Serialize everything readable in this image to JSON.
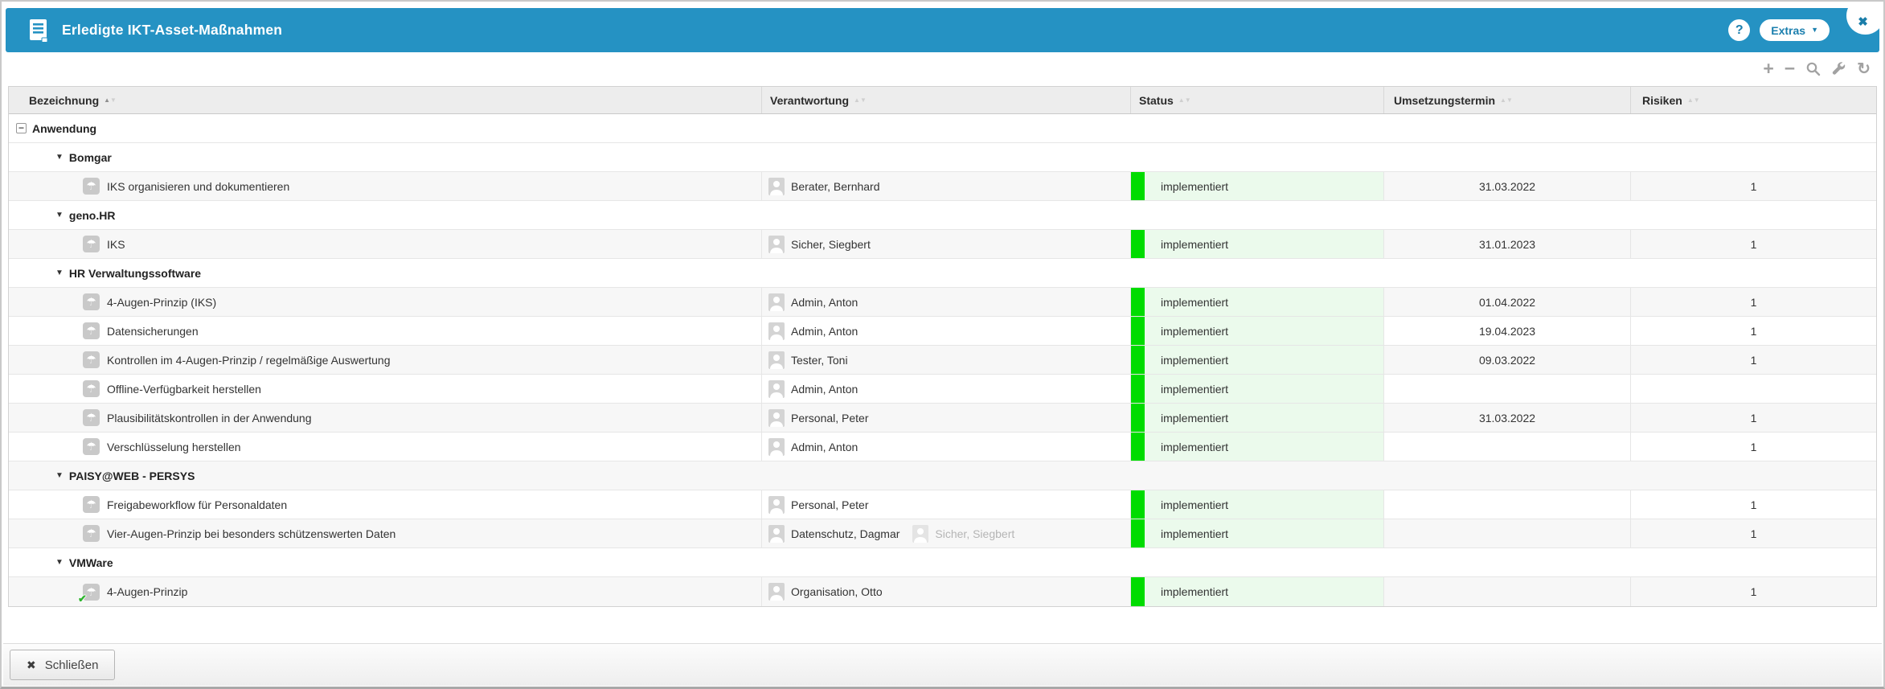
{
  "window": {
    "title": "Erledigte IKT-Asset-Maßnahmen",
    "help_label": "?",
    "extras_label": "Extras",
    "close_glyph": "✖"
  },
  "toolbar": {
    "icons": [
      {
        "name": "add",
        "glyph": "+"
      },
      {
        "name": "remove",
        "glyph": "−"
      },
      {
        "name": "search"
      },
      {
        "name": "settings-wrench"
      },
      {
        "name": "refresh",
        "glyph": "↻"
      }
    ]
  },
  "table": {
    "columns": [
      {
        "label": "Bezeichnung",
        "sort": "asc"
      },
      {
        "label": "Verantwortung",
        "sort": "none"
      },
      {
        "label": "Status",
        "sort": "none"
      },
      {
        "label": "Umsetzungstermin",
        "sort": "none"
      },
      {
        "label": "Risiken",
        "sort": "none"
      }
    ],
    "rows": [
      {
        "type": "group",
        "level": 0,
        "label": "Anwendung",
        "shaded": false
      },
      {
        "type": "group",
        "level": 1,
        "label": "Bomgar",
        "shaded": false
      },
      {
        "type": "measure",
        "label": "IKS organisieren und dokumentieren",
        "responsible": [
          {
            "name": "Berater, Bernhard",
            "muted": false
          }
        ],
        "status": "implementiert",
        "date": "31.03.2022",
        "risks": "1",
        "shaded": true,
        "done_badge": false
      },
      {
        "type": "group",
        "level": 1,
        "label": "geno.HR",
        "shaded": false
      },
      {
        "type": "measure",
        "label": "IKS",
        "responsible": [
          {
            "name": "Sicher, Siegbert",
            "muted": false
          }
        ],
        "status": "implementiert",
        "date": "31.01.2023",
        "risks": "1",
        "shaded": true,
        "done_badge": false
      },
      {
        "type": "group",
        "level": 1,
        "label": "HR Verwaltungssoftware",
        "shaded": false
      },
      {
        "type": "measure",
        "label": "4-Augen-Prinzip (IKS)",
        "responsible": [
          {
            "name": "Admin, Anton",
            "muted": false
          }
        ],
        "status": "implementiert",
        "date": "01.04.2022",
        "risks": "1",
        "shaded": true,
        "done_badge": false
      },
      {
        "type": "measure",
        "label": "Datensicherungen",
        "responsible": [
          {
            "name": "Admin, Anton",
            "muted": false
          }
        ],
        "status": "implementiert",
        "date": "19.04.2023",
        "risks": "1",
        "shaded": false,
        "done_badge": false
      },
      {
        "type": "measure",
        "label": "Kontrollen im 4-Augen-Prinzip / regelmäßige Auswertung",
        "responsible": [
          {
            "name": "Tester, Toni",
            "muted": false
          }
        ],
        "status": "implementiert",
        "date": "09.03.2022",
        "risks": "1",
        "shaded": true,
        "done_badge": false
      },
      {
        "type": "measure",
        "label": "Offline-Verfügbarkeit herstellen",
        "responsible": [
          {
            "name": "Admin, Anton",
            "muted": false
          }
        ],
        "status": "implementiert",
        "date": "",
        "risks": "",
        "shaded": false,
        "done_badge": false
      },
      {
        "type": "measure",
        "label": "Plausibilitätskontrollen in der Anwendung",
        "responsible": [
          {
            "name": "Personal, Peter",
            "muted": false
          }
        ],
        "status": "implementiert",
        "date": "31.03.2022",
        "risks": "1",
        "shaded": true,
        "done_badge": false
      },
      {
        "type": "measure",
        "label": "Verschlüsselung herstellen",
        "responsible": [
          {
            "name": "Admin, Anton",
            "muted": false
          }
        ],
        "status": "implementiert",
        "date": "",
        "risks": "1",
        "shaded": false,
        "done_badge": false
      },
      {
        "type": "group",
        "level": 1,
        "label": "PAISY@WEB - PERSYS",
        "shaded": true
      },
      {
        "type": "measure",
        "label": "Freigabeworkflow für Personaldaten",
        "responsible": [
          {
            "name": "Personal, Peter",
            "muted": false
          }
        ],
        "status": "implementiert",
        "date": "",
        "risks": "1",
        "shaded": false,
        "done_badge": false
      },
      {
        "type": "measure",
        "label": "Vier-Augen-Prinzip bei besonders schützenswerten Daten",
        "responsible": [
          {
            "name": "Datenschutz, Dagmar",
            "muted": false
          },
          {
            "name": "Sicher, Siegbert",
            "muted": true
          }
        ],
        "status": "implementiert",
        "date": "",
        "risks": "1",
        "shaded": true,
        "done_badge": false
      },
      {
        "type": "group",
        "level": 1,
        "label": "VMWare",
        "shaded": false
      },
      {
        "type": "measure",
        "label": "4-Augen-Prinzip",
        "responsible": [
          {
            "name": "Organisation, Otto",
            "muted": false
          }
        ],
        "status": "implementiert",
        "date": "",
        "risks": "1",
        "shaded": true,
        "done_badge": true
      }
    ]
  },
  "footer": {
    "close_button": "Schließen"
  },
  "colors": {
    "titlebar_blue": "#2592c3",
    "status_green": "#00dc00",
    "status_light_green": "#ebfaec",
    "shaded_row": "#f7f7f7"
  }
}
